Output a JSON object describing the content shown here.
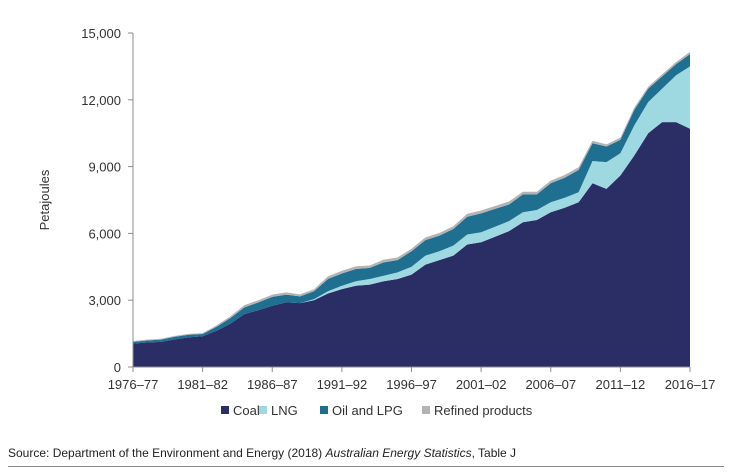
{
  "chart_data": {
    "type": "area",
    "stacked": true,
    "ylabel": "Petajoules",
    "ylim": [
      0,
      15000
    ],
    "yticks": [
      "0",
      "3,000",
      "6,000",
      "9,000",
      "12,000",
      "15,000"
    ],
    "ytick_values": [
      0,
      3000,
      6000,
      9000,
      12000,
      15000
    ],
    "x": [
      "1976–77",
      "1977–78",
      "1978–79",
      "1979–80",
      "1980–81",
      "1981–82",
      "1982–83",
      "1983–84",
      "1984–85",
      "1985–86",
      "1986–87",
      "1987–88",
      "1988–89",
      "1989–90",
      "1990–91",
      "1991–92",
      "1992–93",
      "1993–94",
      "1994–95",
      "1995–96",
      "1996–97",
      "1997–98",
      "1998–99",
      "1999–00",
      "2000–01",
      "2001–02",
      "2002–03",
      "2003–04",
      "2004–05",
      "2005–06",
      "2006–07",
      "2007–08",
      "2008–09",
      "2009–10",
      "2010–11",
      "2011–12",
      "2012–13",
      "2013–14",
      "2014–15",
      "2015–16",
      "2016–17"
    ],
    "xtick_labels": [
      "1976–77",
      "1981–82",
      "1986–87",
      "1991–92",
      "1996–97",
      "2001–02",
      "2006–07",
      "2011–12",
      "2016–17"
    ],
    "xtick_index": [
      0,
      5,
      10,
      15,
      20,
      25,
      30,
      35,
      40
    ],
    "series": [
      {
        "name": "Coal",
        "color": "#2b2d65",
        "values": [
          1050,
          1100,
          1130,
          1240,
          1330,
          1380,
          1630,
          1950,
          2380,
          2550,
          2750,
          2900,
          2870,
          3000,
          3300,
          3500,
          3650,
          3700,
          3850,
          3950,
          4150,
          4600,
          4800,
          5000,
          5500,
          5600,
          5850,
          6100,
          6500,
          6600,
          6950,
          7150,
          7400,
          8250,
          8000,
          8600,
          9500,
          10500,
          11000,
          11000,
          10700
        ]
      },
      {
        "name": "LNG",
        "color": "#9ed8e0",
        "values": [
          0,
          0,
          0,
          0,
          0,
          0,
          0,
          0,
          0,
          0,
          0,
          0,
          0,
          50,
          100,
          150,
          200,
          250,
          250,
          300,
          350,
          400,
          400,
          450,
          450,
          450,
          450,
          450,
          450,
          450,
          450,
          450,
          450,
          1000,
          1200,
          1000,
          1350,
          1400,
          1500,
          2100,
          2800
        ]
      },
      {
        "name": "Oil and LPG",
        "color": "#1e6f90",
        "values": [
          80,
          90,
          100,
          120,
          120,
          100,
          180,
          250,
          300,
          350,
          400,
          350,
          300,
          350,
          550,
          550,
          550,
          500,
          600,
          550,
          700,
          700,
          700,
          750,
          800,
          850,
          800,
          750,
          800,
          700,
          850,
          900,
          1000,
          800,
          700,
          600,
          700,
          600,
          550,
          500,
          550
        ]
      },
      {
        "name": "Refined products",
        "color": "#b3b3b3",
        "values": [
          40,
          40,
          40,
          40,
          40,
          40,
          60,
          80,
          100,
          100,
          100,
          100,
          90,
          90,
          120,
          120,
          120,
          110,
          120,
          120,
          110,
          120,
          120,
          120,
          130,
          130,
          130,
          130,
          120,
          120,
          120,
          120,
          120,
          110,
          100,
          100,
          100,
          90,
          100,
          100,
          100
        ]
      }
    ],
    "legend_position": "bottom",
    "grid": false
  },
  "source": {
    "prefix": "Source: Department of the Environment and Energy (2018) ",
    "title": "Australian Energy Statistics",
    "suffix": ", Table J"
  }
}
